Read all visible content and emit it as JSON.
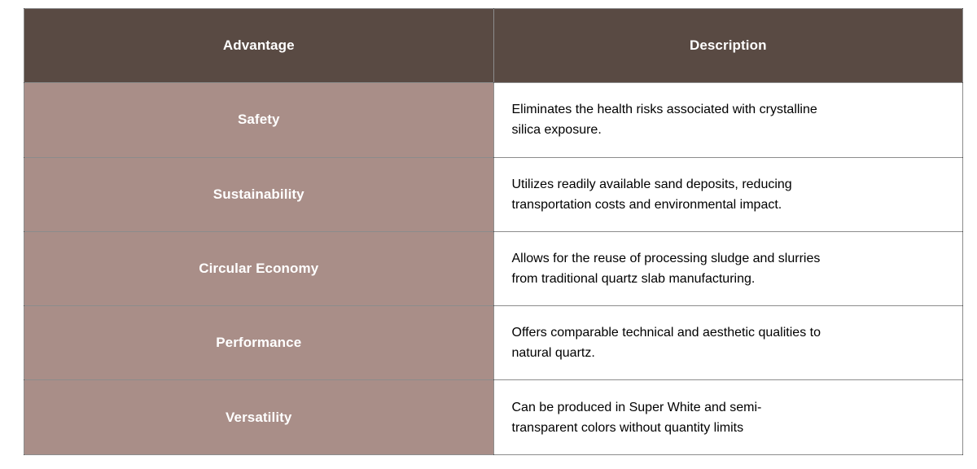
{
  "table": {
    "columns": [
      {
        "label": "Advantage"
      },
      {
        "label": "Description"
      }
    ],
    "rows": [
      {
        "advantage": "Safety",
        "description": "Eliminates the health risks associated with crystalline\nsilica exposure."
      },
      {
        "advantage": "Sustainability",
        "description": "Utilizes readily available sand deposits, reducing\ntransportation costs and environmental impact."
      },
      {
        "advantage": "Circular Economy",
        "description": "Allows for the reuse of processing sludge and slurries\nfrom traditional quartz slab manufacturing."
      },
      {
        "advantage": "Performance",
        "description": "Offers comparable technical and aesthetic qualities to\nnatural quartz."
      },
      {
        "advantage": "Versatility",
        "description": "Can be produced in Super White and semi-\ntransparent colors without quantity limits"
      }
    ],
    "colors": {
      "header_bg": "#594a43",
      "header_text": "#ffffff",
      "advantage_bg": "#a98e88",
      "advantage_text": "#ffffff",
      "description_bg": "#ffffff",
      "description_text": "#000000",
      "border": "rgba(0,0,0,0.45)"
    }
  }
}
